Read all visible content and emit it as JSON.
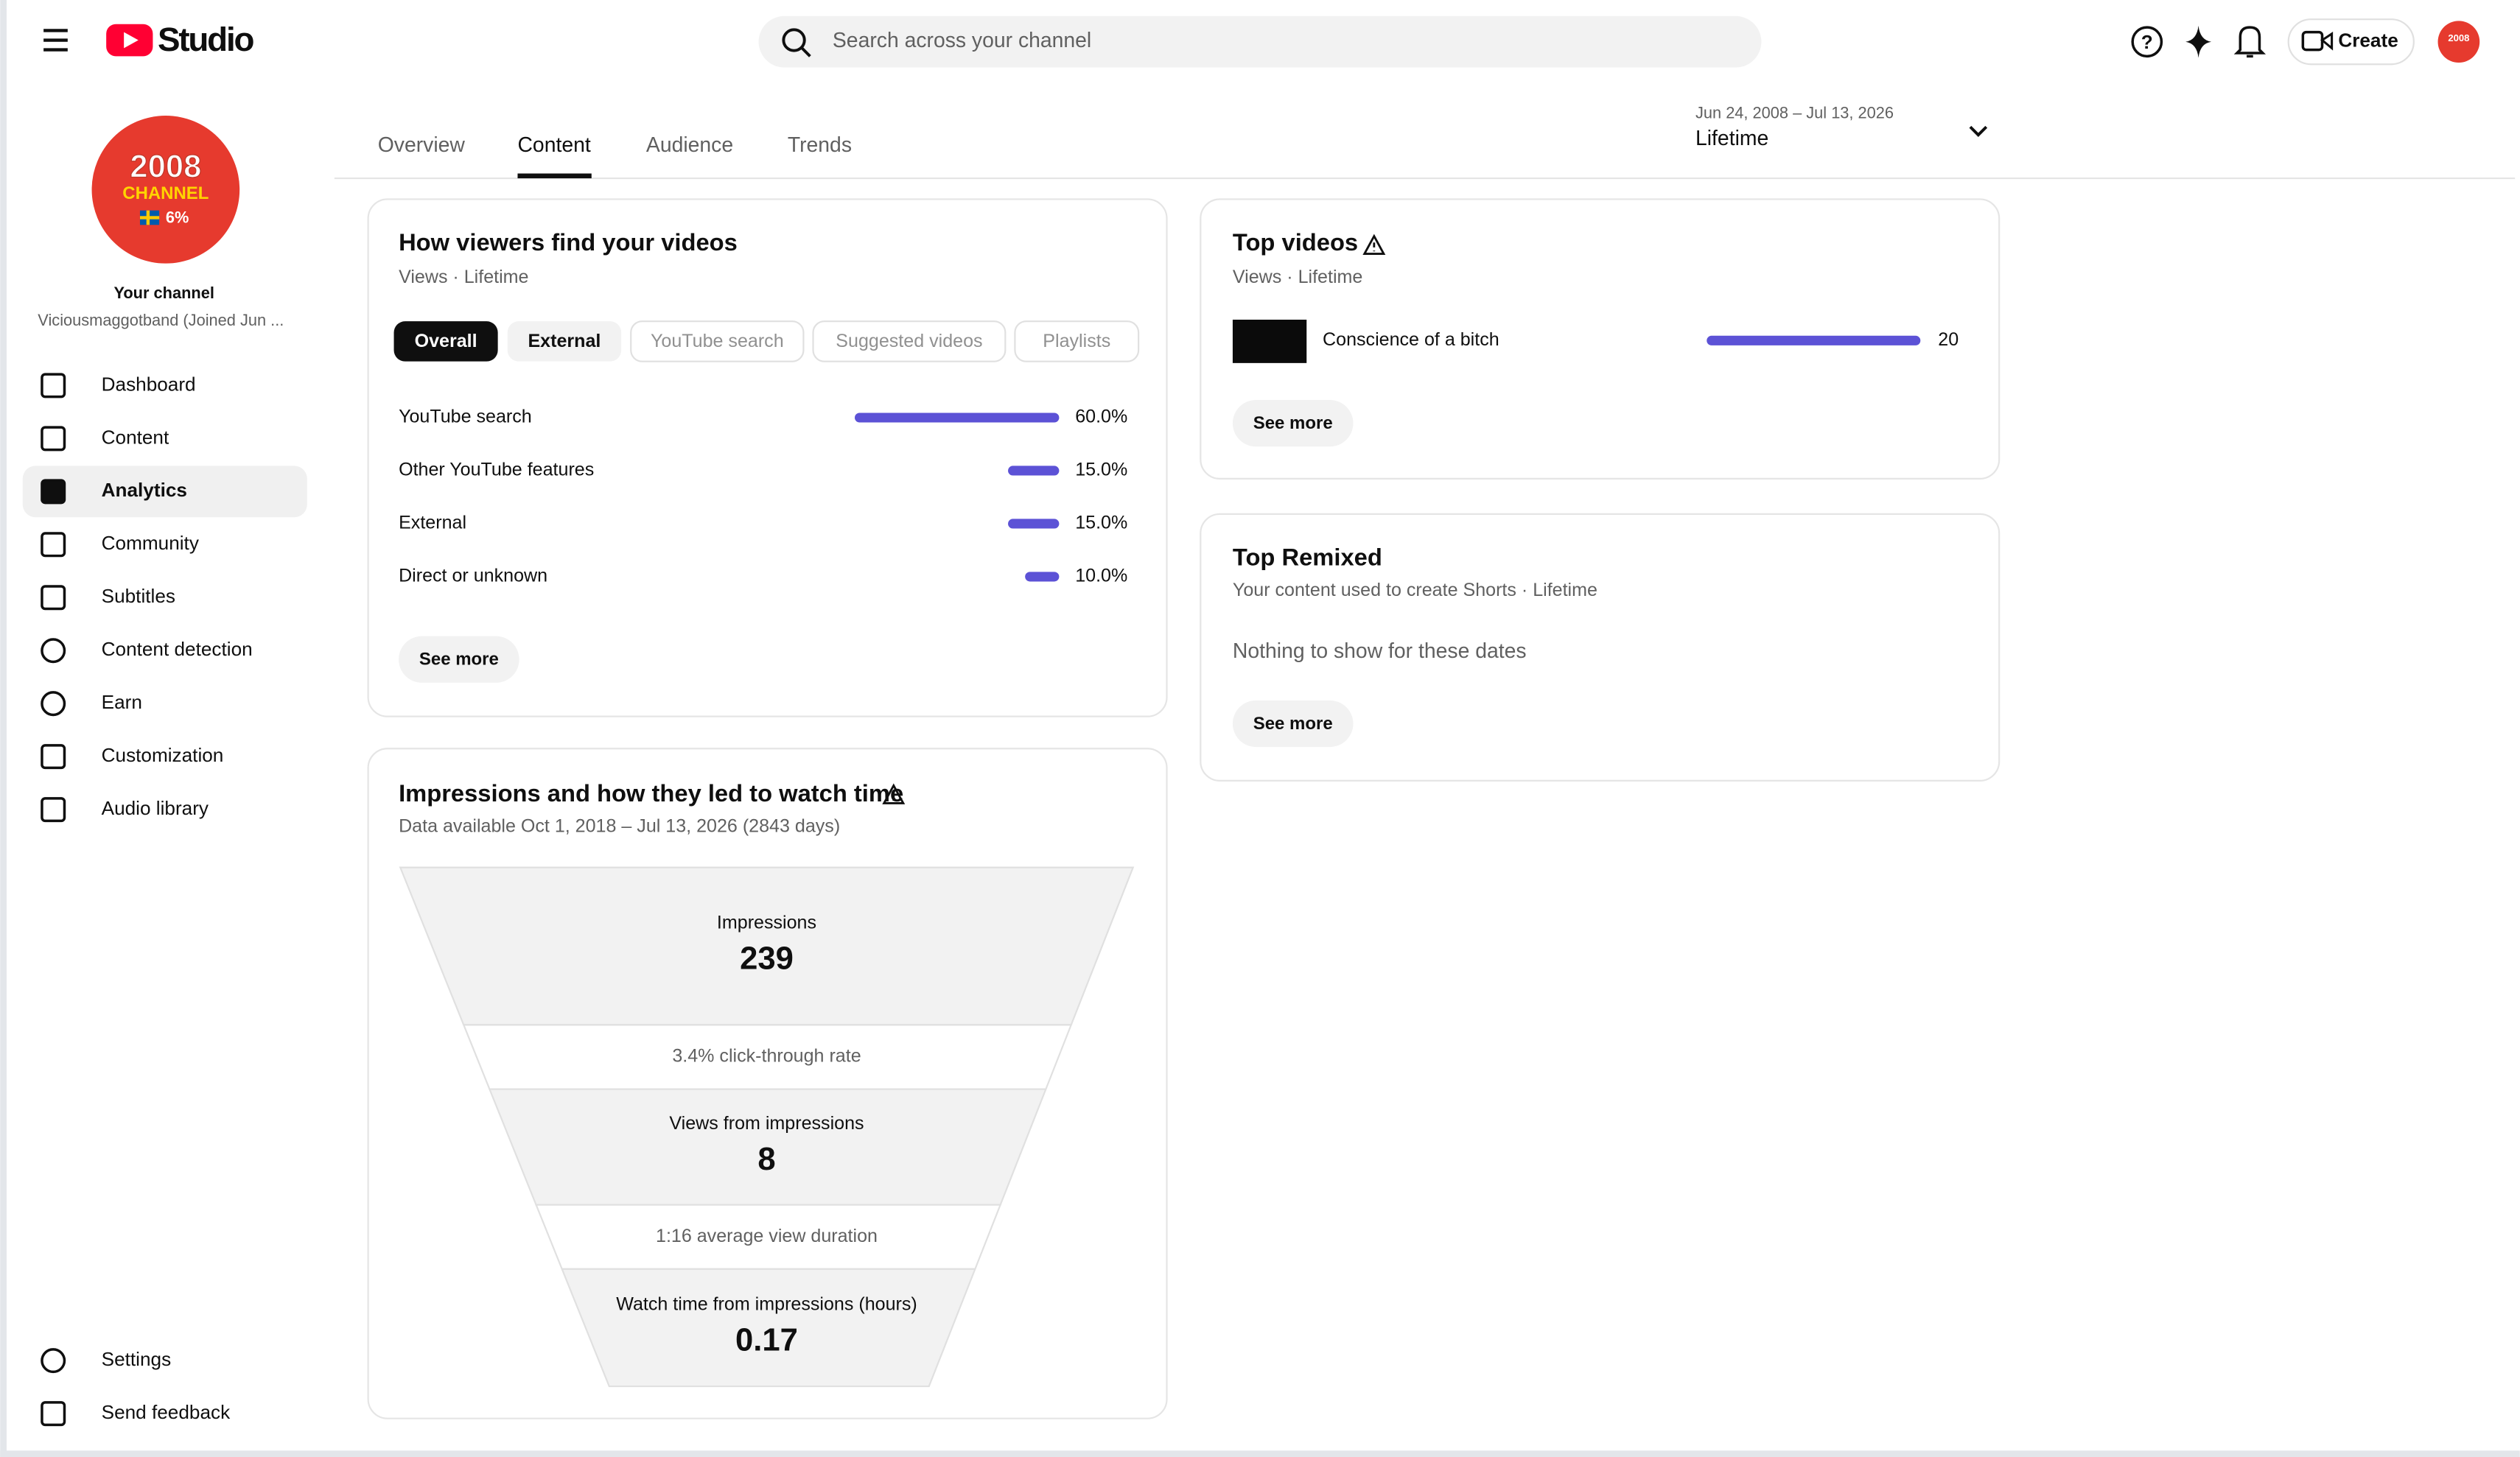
{
  "header": {
    "logo": "Studio",
    "search_placeholder": "Search across your channel",
    "create": "Create"
  },
  "channel": {
    "avatar_year": "2008",
    "avatar_word": "CHANNEL",
    "avatar_pct": "6%",
    "title": "Your channel",
    "name": "Viciousmaggotband (Joined Jun ..."
  },
  "nav": [
    "Dashboard",
    "Content",
    "Analytics",
    "Community",
    "Subtitles",
    "Content detection",
    "Earn",
    "Customization",
    "Audio library"
  ],
  "nav_active": 2,
  "nav_bottom": [
    "Settings",
    "Send feedback"
  ],
  "tabs": [
    "Overview",
    "Content",
    "Audience",
    "Trends"
  ],
  "tab_active": 1,
  "date_range": {
    "range": "Jun 24, 2008 – Jul 13, 2026",
    "label": "Lifetime"
  },
  "traffic": {
    "title": "How viewers find your videos",
    "subtitle": "Views · Lifetime",
    "filters": [
      "Overall",
      "External",
      "YouTube search",
      "Suggested videos",
      "Playlists"
    ],
    "rows": [
      {
        "name": "YouTube search",
        "value": 60.0,
        "value_label": "60.0%"
      },
      {
        "name": "Other YouTube features",
        "value": 15.0,
        "value_label": "15.0%"
      },
      {
        "name": "External",
        "value": 15.0,
        "value_label": "15.0%"
      },
      {
        "name": "Direct or unknown",
        "value": 10.0,
        "value_label": "10.0%"
      }
    ],
    "see_more": "See more"
  },
  "impressions": {
    "title": "Impressions and how they led to watch time",
    "subtitle": "Data available Oct 1, 2018 – Jul 13, 2026 (2843 days)",
    "funnel": [
      {
        "label": "Impressions",
        "value": 239
      },
      {
        "label": "3.4% click-through rate"
      },
      {
        "label": "Views from impressions",
        "value": 8
      },
      {
        "label": "1:16 average view duration"
      },
      {
        "label": "Watch time from impressions (hours)",
        "value": 0.17
      }
    ]
  },
  "top_videos": {
    "title": "Top videos",
    "subtitle": "Views · Lifetime",
    "items": [
      {
        "title": "Conscience of a bitch",
        "views": 20
      }
    ],
    "see_more": "See more"
  },
  "top_remixed": {
    "title": "Top Remixed",
    "subtitle": "Your content used to create Shorts · Lifetime",
    "empty": "Nothing to show for these dates",
    "see_more": "See more"
  }
}
